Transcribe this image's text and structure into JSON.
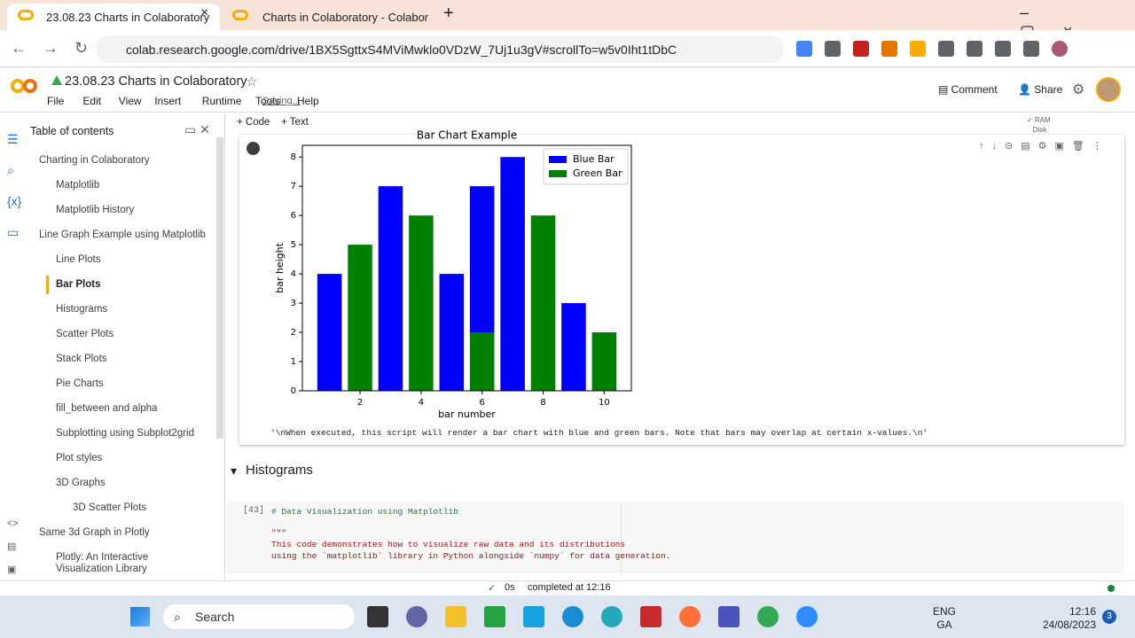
{
  "browser": {
    "tabs": [
      "23.08.23 Charts in Colaboratory",
      "Charts in Colaboratory - Colabor"
    ],
    "url": "colab.research.google.com/drive/1BX5SgttxS4MViMwklo0VDzW_7Uj1u3gV#scrollTo=w5v0Iht1tDbC"
  },
  "notebook": {
    "title": "23.08.23 Charts in Colaboratory",
    "menu": [
      "File",
      "Edit",
      "View",
      "Insert",
      "Runtime",
      "Tools",
      "Help"
    ],
    "status": "Saving...",
    "actions": [
      "Comment",
      "Share"
    ],
    "toolbar": [
      "+ Code",
      "+ Text"
    ],
    "resources": [
      "RAM",
      "Disk"
    ]
  },
  "toc": {
    "title": "Table of contents",
    "active": 5,
    "items": [
      {
        "label": "Charting in Colaboratory",
        "level": 1
      },
      {
        "label": "Matplotlib",
        "level": 2
      },
      {
        "label": "Matplotlib History",
        "level": 2
      },
      {
        "label": "Line Graph Example using Matplotlib",
        "level": 1
      },
      {
        "label": "Line Plots",
        "level": 2
      },
      {
        "label": "Bar Plots",
        "level": 2
      },
      {
        "label": "Histograms",
        "level": 2
      },
      {
        "label": "Scatter Plots",
        "level": 2
      },
      {
        "label": "Stack Plots",
        "level": 2
      },
      {
        "label": "Pie Charts",
        "level": 2
      },
      {
        "label": "fill_between and alpha",
        "level": 2
      },
      {
        "label": "Subplotting using Subplot2grid",
        "level": 2
      },
      {
        "label": "Plot styles",
        "level": 2
      },
      {
        "label": "3D Graphs",
        "level": 2
      },
      {
        "label": "3D Scatter Plots",
        "level": 3
      },
      {
        "label": "Same 3d Graph in Plotly",
        "level": 1
      },
      {
        "label": "Plotly: An Interactive Visualization Library",
        "level": 2
      }
    ]
  },
  "output": {
    "chart": {
      "type": "bar",
      "title": "Bar Chart Example",
      "x_label": "bar number",
      "y_label": "bar height",
      "xlim": [
        0.11,
        10.89
      ],
      "ylim": [
        0,
        8.4
      ],
      "xticks": [
        2,
        4,
        6,
        8,
        10
      ],
      "yticks": [
        0,
        1,
        2,
        3,
        4,
        5,
        6,
        7,
        8
      ],
      "bar_width": 0.8,
      "legend": "upper right",
      "series": [
        {
          "name": "Blue Bar",
          "color": "#0000ff",
          "x": [
            1,
            3,
            5,
            6,
            7,
            9
          ],
          "values": [
            4,
            7,
            4,
            7,
            8,
            3
          ]
        },
        {
          "name": "Green Bar",
          "color": "#008000",
          "x": [
            2,
            4,
            6,
            8,
            10
          ],
          "values": [
            5,
            6,
            2,
            6,
            2
          ]
        }
      ]
    },
    "text": "'\\nWhen executed, this script will render a bar chart with blue and green bars. Note that bars may overlap at certain x-values.\\n'"
  },
  "section": "Histograms",
  "code_cell": {
    "count": "[43]",
    "lines": [
      "# Data Visualization using Matplotlib",
      "\"\"\"",
      "This code demonstrates how to visualize raw data and its distributions",
      "using the `matplotlib` library in Python alongside `numpy` for data generation."
    ]
  },
  "statusbar": {
    "time": "0s",
    "message": "completed at 12:16"
  },
  "taskbar": {
    "search": "Search",
    "lang": [
      "ENG",
      "GA"
    ],
    "clock": [
      "12:16",
      "24/08/2023"
    ],
    "notifications": "3"
  }
}
